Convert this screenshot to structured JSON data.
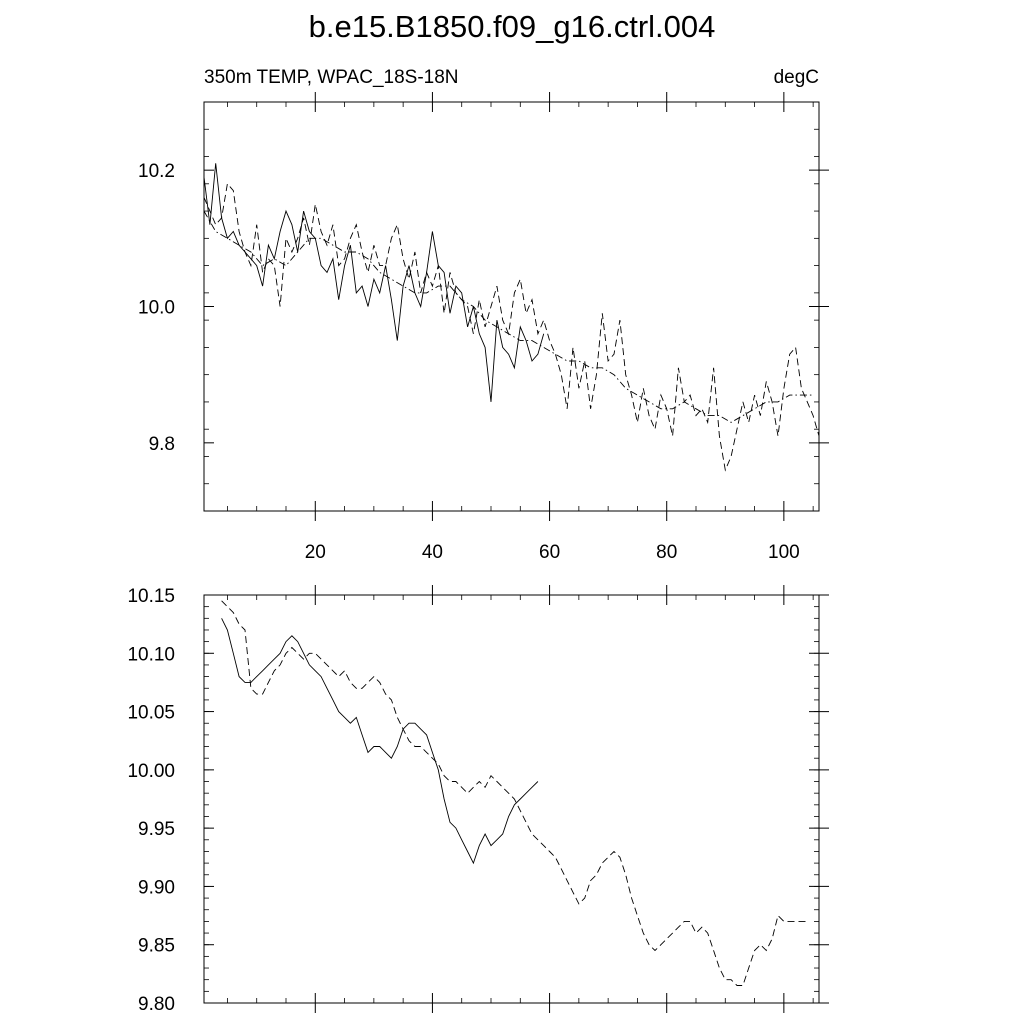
{
  "figure": {
    "title": "b.e15.B1850.f09_g16.ctrl.004"
  },
  "chart_data": [
    {
      "type": "line",
      "subtitle_left": "350m TEMP, WPAC_18S-18N",
      "subtitle_right": "degC",
      "xlim": [
        1,
        106
      ],
      "ylim": [
        9.7,
        10.3
      ],
      "xticks": [
        20,
        40,
        60,
        80,
        100
      ],
      "xtick_labels": [
        "20",
        "40",
        "60",
        "80",
        "100"
      ],
      "yticks": [
        9.8,
        10.0,
        10.2
      ],
      "ytick_labels": [
        "9.8",
        "10.0",
        "10.2"
      ],
      "series": [
        {
          "style": "solid",
          "x": [
            1,
            2,
            3,
            4,
            5,
            6,
            7,
            8,
            9,
            10,
            11,
            12,
            13,
            14,
            15,
            16,
            17,
            18,
            19,
            20,
            21,
            22,
            23,
            24,
            25,
            26,
            27,
            28,
            29,
            30,
            31,
            32,
            33,
            34,
            35,
            36,
            37,
            38,
            39,
            40,
            41,
            42,
            43,
            44,
            45,
            46,
            47,
            48,
            49,
            50,
            51,
            52,
            53,
            54,
            55,
            56,
            57,
            58,
            59
          ],
          "y": [
            10.19,
            10.12,
            10.21,
            10.13,
            10.1,
            10.11,
            10.09,
            10.08,
            10.07,
            10.06,
            10.03,
            10.09,
            10.07,
            10.11,
            10.14,
            10.12,
            10.08,
            10.14,
            10.11,
            10.1,
            10.06,
            10.05,
            10.07,
            10.01,
            10.06,
            10.09,
            10.02,
            10.03,
            10.0,
            10.04,
            10.02,
            10.06,
            10.01,
            9.95,
            10.03,
            10.06,
            10.02,
            10.0,
            10.05,
            10.11,
            10.06,
            10.05,
            9.99,
            10.03,
            10.02,
            9.97,
            10.0,
            9.96,
            9.94,
            9.86,
            9.98,
            9.94,
            9.93,
            9.91,
            9.97,
            9.95,
            9.92,
            9.93,
            9.96
          ]
        },
        {
          "style": "dashed",
          "x": [
            1,
            2,
            3,
            4,
            5,
            6,
            7,
            8,
            9,
            10,
            11,
            12,
            13,
            14,
            15,
            16,
            17,
            18,
            19,
            20,
            21,
            22,
            23,
            24,
            25,
            26,
            27,
            28,
            29,
            30,
            31,
            32,
            33,
            34,
            35,
            36,
            37,
            38,
            39,
            40,
            41,
            42,
            43,
            44,
            45,
            46,
            47,
            48,
            49,
            50,
            51,
            52,
            53,
            54,
            55,
            56,
            57,
            58,
            59,
            60,
            61,
            62,
            63,
            64,
            65,
            66,
            67,
            68,
            69,
            70,
            71,
            72,
            73,
            74,
            75,
            76,
            77,
            78,
            79,
            80,
            81,
            82,
            83,
            84,
            85,
            86,
            87,
            88,
            89,
            90,
            91,
            92,
            93,
            94,
            95,
            96,
            97,
            98,
            99,
            100,
            101,
            102,
            103,
            104,
            105,
            106
          ],
          "y": [
            10.16,
            10.14,
            10.12,
            10.13,
            10.18,
            10.17,
            10.11,
            10.08,
            10.06,
            10.12,
            10.05,
            10.07,
            10.06,
            10.0,
            10.1,
            10.08,
            10.1,
            10.13,
            10.09,
            10.15,
            10.11,
            10.09,
            10.12,
            10.06,
            10.07,
            10.1,
            10.12,
            10.08,
            10.05,
            10.09,
            10.06,
            10.06,
            10.1,
            10.12,
            10.07,
            10.04,
            10.08,
            10.02,
            10.05,
            10.03,
            10.06,
            9.99,
            10.05,
            10.02,
            10.01,
            10.0,
            9.96,
            10.01,
            9.97,
            10.0,
            10.03,
            9.98,
            9.96,
            10.02,
            10.04,
            9.99,
            10.01,
            9.96,
            9.98,
            9.95,
            9.93,
            9.9,
            9.85,
            9.94,
            9.88,
            9.92,
            9.85,
            9.9,
            9.99,
            9.92,
            9.93,
            9.98,
            9.9,
            9.87,
            9.83,
            9.88,
            9.84,
            9.82,
            9.87,
            9.85,
            9.81,
            9.91,
            9.86,
            9.87,
            9.84,
            9.85,
            9.83,
            9.91,
            9.81,
            9.76,
            9.78,
            9.82,
            9.86,
            9.83,
            9.87,
            9.84,
            9.89,
            9.86,
            9.81,
            9.88,
            9.93,
            9.94,
            9.88,
            9.86,
            9.84,
            9.81
          ]
        },
        {
          "style": "dashdot",
          "x": [
            1,
            3,
            5,
            7,
            9,
            11,
            13,
            15,
            17,
            19,
            21,
            23,
            25,
            27,
            29,
            31,
            33,
            35,
            37,
            39,
            41,
            43,
            45,
            47,
            49,
            51,
            53,
            55,
            57,
            59,
            61,
            63,
            65,
            67,
            69,
            71,
            73,
            75,
            77,
            79,
            81,
            83,
            85,
            87,
            89,
            91,
            93,
            95,
            97,
            99,
            101,
            103,
            105
          ],
          "y": [
            10.14,
            10.11,
            10.1,
            10.09,
            10.08,
            10.06,
            10.07,
            10.06,
            10.08,
            10.1,
            10.1,
            10.09,
            10.08,
            10.08,
            10.07,
            10.05,
            10.04,
            10.03,
            10.02,
            10.02,
            10.03,
            10.03,
            10.01,
            10.0,
            9.98,
            9.97,
            9.96,
            9.95,
            9.95,
            9.94,
            9.93,
            9.92,
            9.92,
            9.91,
            9.91,
            9.9,
            9.88,
            9.87,
            9.86,
            9.85,
            9.85,
            9.86,
            9.85,
            9.84,
            9.84,
            9.83,
            9.84,
            9.85,
            9.86,
            9.86,
            9.87,
            9.87,
            9.87
          ]
        }
      ]
    },
    {
      "type": "line",
      "xlim": [
        1,
        106
      ],
      "ylim": [
        9.8,
        10.15
      ],
      "xticks": [
        20,
        40,
        60,
        80,
        100
      ],
      "yticks": [
        9.8,
        9.85,
        9.9,
        9.95,
        10.0,
        10.05,
        10.1,
        10.15
      ],
      "ytick_labels": [
        "9.80",
        "9.85",
        "9.90",
        "9.95",
        "10.00",
        "10.05",
        "10.10",
        "10.15"
      ],
      "series": [
        {
          "style": "solid",
          "x": [
            4,
            5,
            6,
            7,
            8,
            9,
            10,
            11,
            12,
            13,
            14,
            15,
            16,
            17,
            18,
            19,
            20,
            21,
            22,
            23,
            24,
            25,
            26,
            27,
            28,
            29,
            30,
            31,
            32,
            33,
            34,
            35,
            36,
            37,
            38,
            39,
            40,
            41,
            42,
            43,
            44,
            45,
            46,
            47,
            48,
            49,
            50,
            51,
            52,
            53,
            54,
            55,
            56,
            57,
            58
          ],
          "y": [
            10.13,
            10.12,
            10.1,
            10.08,
            10.075,
            10.075,
            10.08,
            10.085,
            10.09,
            10.095,
            10.1,
            10.11,
            10.115,
            10.11,
            10.1,
            10.09,
            10.085,
            10.08,
            10.07,
            10.06,
            10.05,
            10.045,
            10.04,
            10.045,
            10.03,
            10.015,
            10.02,
            10.02,
            10.015,
            10.01,
            10.02,
            10.035,
            10.04,
            10.04,
            10.035,
            10.03,
            10.015,
            10.0,
            9.975,
            9.955,
            9.95,
            9.94,
            9.93,
            9.92,
            9.935,
            9.945,
            9.935,
            9.94,
            9.945,
            9.96,
            9.97,
            9.975,
            9.98,
            9.985,
            9.99
          ]
        },
        {
          "style": "dashed",
          "x": [
            4,
            5,
            6,
            7,
            8,
            9,
            10,
            11,
            12,
            13,
            14,
            15,
            16,
            17,
            18,
            19,
            20,
            21,
            22,
            23,
            24,
            25,
            26,
            27,
            28,
            29,
            30,
            31,
            32,
            33,
            34,
            35,
            36,
            37,
            38,
            39,
            40,
            41,
            42,
            43,
            44,
            45,
            46,
            47,
            48,
            49,
            50,
            51,
            52,
            53,
            54,
            55,
            56,
            57,
            58,
            59,
            60,
            61,
            62,
            63,
            64,
            65,
            66,
            67,
            68,
            69,
            70,
            71,
            72,
            73,
            74,
            75,
            76,
            77,
            78,
            79,
            80,
            81,
            82,
            83,
            84,
            85,
            86,
            87,
            88,
            89,
            90,
            91,
            92,
            93,
            94,
            95,
            96,
            97,
            98,
            99,
            100,
            101,
            102,
            103,
            104
          ],
          "y": [
            10.145,
            10.14,
            10.135,
            10.125,
            10.12,
            10.07,
            10.065,
            10.065,
            10.075,
            10.085,
            10.09,
            10.1,
            10.105,
            10.1,
            10.095,
            10.1,
            10.1,
            10.095,
            10.09,
            10.085,
            10.08,
            10.085,
            10.075,
            10.07,
            10.07,
            10.075,
            10.08,
            10.075,
            10.065,
            10.06,
            10.045,
            10.035,
            10.025,
            10.02,
            10.02,
            10.015,
            10.01,
            10.005,
            9.995,
            9.99,
            9.99,
            9.985,
            9.98,
            9.985,
            9.99,
            9.985,
            9.995,
            9.99,
            9.985,
            9.98,
            9.975,
            9.965,
            9.955,
            9.945,
            9.94,
            9.935,
            9.93,
            9.925,
            9.915,
            9.905,
            9.895,
            9.885,
            9.89,
            9.905,
            9.91,
            9.92,
            9.925,
            9.93,
            9.925,
            9.91,
            9.89,
            9.875,
            9.86,
            9.85,
            9.845,
            9.85,
            9.855,
            9.86,
            9.865,
            9.87,
            9.87,
            9.86,
            9.865,
            9.86,
            9.845,
            9.83,
            9.82,
            9.82,
            9.815,
            9.815,
            9.83,
            9.845,
            9.85,
            9.845,
            9.855,
            9.875,
            9.87,
            9.87,
            9.87,
            9.87,
            9.87
          ]
        }
      ]
    }
  ]
}
